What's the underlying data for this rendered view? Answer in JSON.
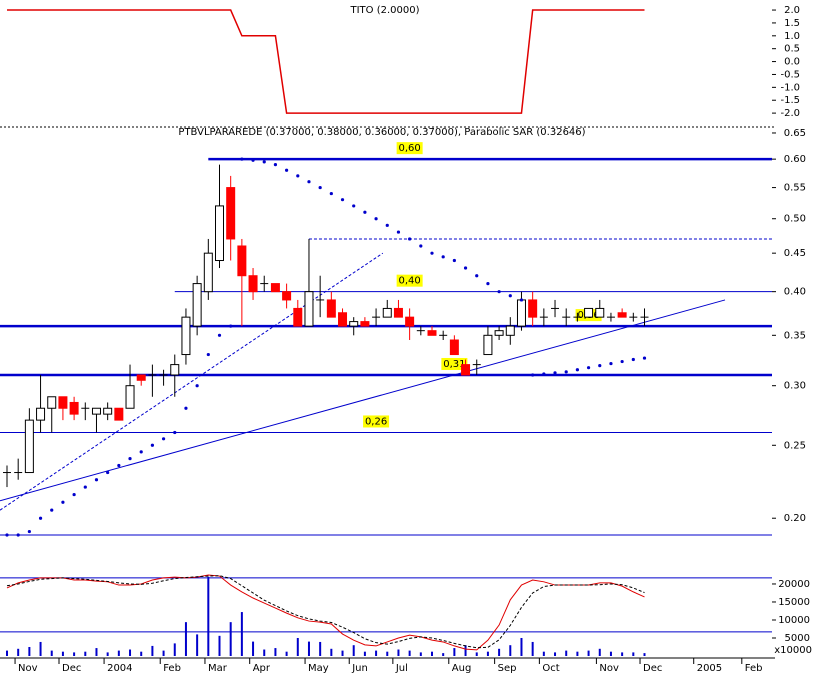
{
  "chart_data": [
    {
      "type": "line",
      "title": "TITO (2.0000)",
      "color": "#e00000",
      "values": [
        2,
        2,
        2,
        2,
        2,
        2,
        2,
        2,
        2,
        2,
        2,
        2,
        2,
        2,
        2,
        2,
        2,
        2,
        2,
        2,
        2,
        1,
        1,
        1,
        1,
        -2,
        -2,
        -2,
        -2,
        -2,
        -2,
        -2,
        -2,
        -2,
        -2,
        -2,
        -2,
        -2,
        -2,
        -2,
        -2,
        -2,
        -2,
        -2,
        -2,
        -2,
        -2,
        2,
        2,
        2,
        2,
        2,
        2,
        2,
        2,
        2,
        2,
        2
      ],
      "xlim": [
        -0.626,
        68.4
      ],
      "ylim": [
        -2.19,
        2.39
      ],
      "yticks": [
        {
          "value": 2,
          "label": "2.0"
        },
        1.5,
        {
          "value": 1,
          "label": "1.0"
        },
        0.5,
        {
          "value": 0,
          "label": "0.0"
        },
        -0.5,
        {
          "value": -1,
          "label": "-1.0"
        },
        -1.5,
        {
          "value": -2,
          "label": "-2.0"
        }
      ]
    },
    {
      "type": "candlestick",
      "subtitle": "PTBVLPARAREDE (0.37000, 0.38000, 0.36000, 0.37000), Parabolic SAR (0.32646)",
      "open": [
        0.23,
        0.23,
        0.23,
        0.27,
        0.28,
        0.29,
        0.285,
        0.28,
        0.275,
        0.275,
        0.28,
        0.28,
        0.31,
        0.31,
        0.31,
        0.31,
        0.33,
        0.36,
        0.4,
        0.44,
        0.55,
        0.46,
        0.42,
        0.41,
        0.41,
        0.4,
        0.38,
        0.36,
        0.39,
        0.39,
        0.375,
        0.36,
        0.365,
        0.37,
        0.37,
        0.38,
        0.37,
        0.355,
        0.355,
        0.35,
        0.345,
        0.32,
        0.32,
        0.33,
        0.35,
        0.35,
        0.36,
        0.39,
        0.37,
        0.38,
        0.37,
        0.37,
        0.37,
        0.37,
        0.37,
        0.375,
        0.37,
        0.37
      ],
      "high": [
        0.235,
        0.24,
        0.28,
        0.31,
        0.29,
        0.29,
        0.29,
        0.285,
        0.28,
        0.285,
        0.28,
        0.32,
        0.31,
        0.32,
        0.315,
        0.33,
        0.38,
        0.42,
        0.47,
        0.59,
        0.57,
        0.47,
        0.43,
        0.42,
        0.41,
        0.41,
        0.39,
        0.47,
        0.42,
        0.4,
        0.38,
        0.37,
        0.37,
        0.38,
        0.39,
        0.39,
        0.38,
        0.36,
        0.36,
        0.355,
        0.35,
        0.325,
        0.325,
        0.36,
        0.36,
        0.37,
        0.4,
        0.4,
        0.38,
        0.39,
        0.38,
        0.375,
        0.38,
        0.39,
        0.375,
        0.38,
        0.375,
        0.38
      ],
      "low": [
        0.22,
        0.225,
        0.23,
        0.26,
        0.26,
        0.27,
        0.27,
        0.27,
        0.26,
        0.27,
        0.27,
        0.28,
        0.3,
        0.29,
        0.3,
        0.29,
        0.32,
        0.35,
        0.39,
        0.43,
        0.44,
        0.36,
        0.39,
        0.4,
        0.4,
        0.38,
        0.36,
        0.36,
        0.37,
        0.37,
        0.36,
        0.35,
        0.36,
        0.36,
        0.37,
        0.37,
        0.345,
        0.35,
        0.35,
        0.345,
        0.33,
        0.31,
        0.31,
        0.33,
        0.345,
        0.34,
        0.355,
        0.36,
        0.36,
        0.37,
        0.36,
        0.365,
        0.37,
        0.37,
        0.365,
        0.37,
        0.365,
        0.36
      ],
      "close": [
        0.23,
        0.23,
        0.27,
        0.28,
        0.29,
        0.28,
        0.275,
        0.28,
        0.28,
        0.28,
        0.27,
        0.3,
        0.305,
        0.31,
        0.31,
        0.32,
        0.37,
        0.41,
        0.45,
        0.52,
        0.47,
        0.42,
        0.4,
        0.41,
        0.4,
        0.39,
        0.36,
        0.4,
        0.39,
        0.37,
        0.36,
        0.365,
        0.36,
        0.37,
        0.38,
        0.37,
        0.36,
        0.355,
        0.35,
        0.35,
        0.33,
        0.31,
        0.32,
        0.35,
        0.355,
        0.36,
        0.39,
        0.37,
        0.37,
        0.38,
        0.37,
        0.37,
        0.38,
        0.38,
        0.37,
        0.37,
        0.37,
        0.37
      ],
      "sar": [
        0.19,
        0.19,
        0.192,
        0.2,
        0.205,
        0.21,
        0.215,
        0.22,
        0.225,
        0.23,
        0.235,
        0.24,
        0.245,
        0.25,
        0.255,
        0.26,
        0.28,
        0.3,
        0.33,
        0.35,
        0.36,
        0.6,
        0.598,
        0.595,
        0.59,
        0.58,
        0.57,
        0.56,
        0.55,
        0.54,
        0.53,
        0.52,
        0.51,
        0.5,
        0.49,
        0.48,
        0.47,
        0.46,
        0.45,
        0.445,
        0.44,
        0.43,
        0.42,
        0.41,
        0.4,
        0.395,
        0.39,
        0.31,
        0.311,
        0.312,
        0.313,
        0.315,
        0.317,
        0.319,
        0.321,
        0.323,
        0.325,
        0.32646
      ],
      "up_color": "#ffffff",
      "down_color": "#ff0000",
      "sar_color": "#0000cc",
      "level_color": "#0000cc",
      "levels": [
        {
          "value": 0.6,
          "label": "0,60",
          "start": 18,
          "label_at": 36,
          "style": "thick"
        },
        {
          "value": 0.47,
          "start": 27,
          "style": "dashed"
        },
        {
          "value": 0.4,
          "label": "0,40",
          "start": 15,
          "label_at": 36,
          "style": "thin"
        },
        {
          "value": 0.36,
          "label": "0,36",
          "start": -0.626,
          "label_at": 52,
          "style": "thick"
        },
        {
          "value": 0.31,
          "label": "0,31",
          "start": -0.626,
          "label_at": 40,
          "style": "thick"
        },
        {
          "value": 0.26,
          "label": "0,26",
          "start": -0.626,
          "label_at": 33,
          "style": "thin"
        },
        {
          "value": 0.19,
          "start": -0.626,
          "style": "thin"
        }
      ],
      "trendlines": [
        {
          "x": [
            -0.626,
            64.2
          ],
          "y": [
            0.211,
            0.39
          ],
          "style": "solid"
        },
        {
          "x": [
            -0.626,
            33.6
          ],
          "y": [
            0.205,
            0.45
          ],
          "style": "dashed"
        }
      ],
      "xlim": [
        -0.626,
        68.4
      ],
      "ylim": [
        0.176,
        0.662
      ],
      "log_scale": true,
      "yticks": [
        0.65,
        {
          "value": 0.6,
          "label": "0.60"
        },
        0.55,
        {
          "value": 0.5,
          "label": "0.50"
        },
        0.45,
        {
          "value": 0.4,
          "label": "0.40"
        },
        0.35,
        {
          "value": 0.3,
          "label": "0.30"
        },
        0.25,
        {
          "value": 0.2,
          "label": "0.20"
        }
      ]
    },
    {
      "type": "volume",
      "unit_label": "x10000",
      "color": "#0000cc",
      "values": [
        1500,
        2000,
        2500,
        3900,
        1500,
        1200,
        1000,
        1200,
        2200,
        1000,
        1500,
        1800,
        1200,
        2800,
        1500,
        3500,
        9400,
        6000,
        22000,
        5600,
        9400,
        12200,
        4000,
        1800,
        2200,
        1200,
        5000,
        4000,
        3900,
        2000,
        1500,
        3000,
        1200,
        1500,
        1200,
        1800,
        1500,
        1000,
        1200,
        800,
        2200,
        3000,
        1000,
        1200,
        2000,
        3000,
        5000,
        3900,
        1200,
        1000,
        1500,
        1200,
        1500,
        2000,
        1200,
        1000,
        1000,
        800
      ],
      "lines": [
        {
          "color": "#e00000",
          "style": "solid",
          "values": [
            18900,
            20300,
            21100,
            21700,
            21700,
            21700,
            21100,
            21100,
            20800,
            20600,
            19700,
            19700,
            20000,
            21100,
            21700,
            21900,
            21700,
            21900,
            22500,
            22200,
            19700,
            17800,
            16100,
            14700,
            13300,
            11900,
            10600,
            9700,
            9400,
            8900,
            6100,
            4400,
            3100,
            2800,
            3900,
            5000,
            5800,
            5300,
            4400,
            3900,
            2800,
            1900,
            1700,
            4400,
            8600,
            15600,
            19700,
            21100,
            20600,
            19700,
            19700,
            19700,
            19700,
            20300,
            20300,
            19400,
            17800,
            16400
          ]
        },
        {
          "color": "#000000",
          "style": "dashed",
          "values": [
            19500,
            20000,
            20700,
            21300,
            21500,
            21700,
            21500,
            21300,
            21000,
            20700,
            20300,
            20000,
            19900,
            20200,
            20900,
            21500,
            21800,
            22000,
            22200,
            22300,
            21500,
            19500,
            17500,
            15500,
            14000,
            12500,
            11200,
            10300,
            9700,
            9300,
            8000,
            6500,
            4800,
            3700,
            3300,
            4000,
            4900,
            5300,
            5000,
            4300,
            3500,
            2800,
            2300,
            2400,
            4500,
            8500,
            13500,
            17500,
            19300,
            19700,
            19700,
            19700,
            19700,
            19800,
            20000,
            19800,
            18900,
            17600
          ]
        }
      ],
      "levels": [
        21700,
        6700
      ],
      "xlim": [
        -0.626,
        68.4
      ],
      "ylim": [
        0,
        26100
      ],
      "yticks": [
        20000,
        15000,
        10000,
        5000
      ],
      "xticks": [
        {
          "value": 0.72,
          "label": "Nov"
        },
        {
          "value": 4.65,
          "label": "Dec"
        },
        {
          "value": 8.68,
          "label": "2004"
        },
        {
          "value": 13.7,
          "label": "Feb"
        },
        {
          "value": 17.7,
          "label": "Mar"
        },
        {
          "value": 21.7,
          "label": "Apr"
        },
        {
          "value": 26.65,
          "label": "May"
        },
        {
          "value": 30.6,
          "label": "Jun"
        },
        {
          "value": 34.5,
          "label": "Jul"
        },
        {
          "value": 39.5,
          "label": "Aug"
        },
        {
          "value": 43.6,
          "label": "Sep"
        },
        {
          "value": 47.6,
          "label": "Oct"
        },
        {
          "value": 52.7,
          "label": "Nov"
        },
        {
          "value": 56.6,
          "label": "Dec"
        },
        {
          "value": 61.4,
          "label": "2005"
        },
        {
          "value": 65.7,
          "label": "Feb"
        }
      ]
    }
  ]
}
